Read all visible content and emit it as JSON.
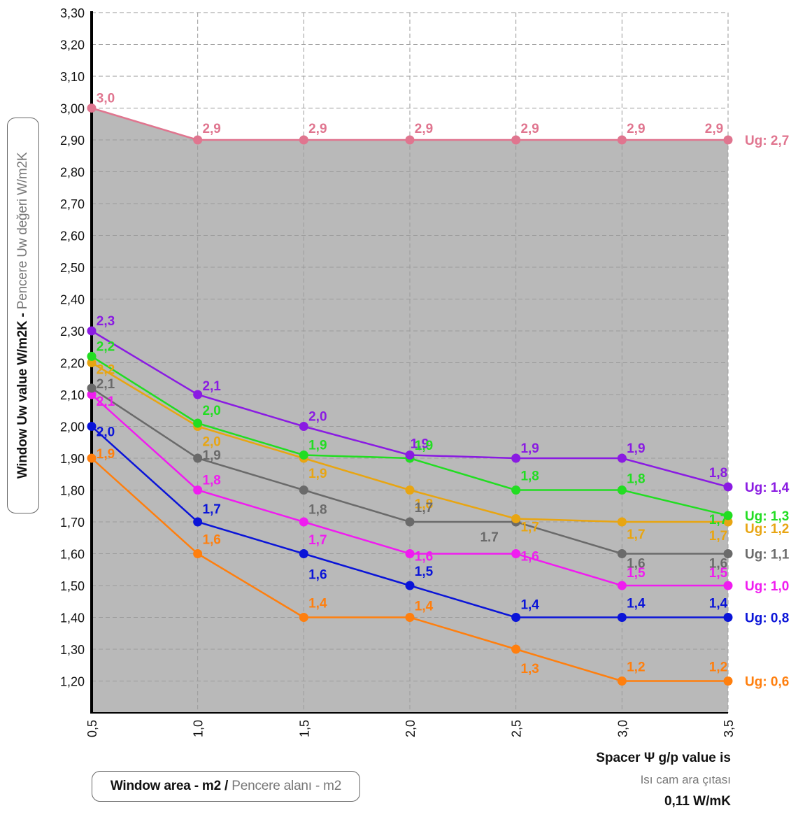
{
  "chart_data": {
    "type": "line",
    "ylabel_bold": "Window Uw value W/m2K - ",
    "ylabel_light": "Pencere Uw değeri W/m2K",
    "xlabel_bold": "Window area - m2 / ",
    "xlabel_light": "Pencere alanı - m2",
    "spacer_note": {
      "line1": "Spacer Ψ g/p value is",
      "line2": "Isı cam ara çıtası",
      "line3": "0,11 W/mK"
    },
    "x": [
      0.5,
      1.0,
      1.5,
      2.0,
      2.5,
      3.0,
      3.5
    ],
    "x_tick_labels": [
      "0,5",
      "1,0",
      "1,5",
      "2,0",
      "2,5",
      "3,0",
      "3,5"
    ],
    "ylim": [
      1.1,
      3.3
    ],
    "y_ticks": [
      1.2,
      1.3,
      1.4,
      1.5,
      1.6,
      1.7,
      1.8,
      1.9,
      2.0,
      2.1,
      2.2,
      2.3,
      2.4,
      2.5,
      2.6,
      2.7,
      2.8,
      2.9,
      3.0,
      3.1,
      3.2,
      3.3
    ],
    "y_tick_labels": [
      "1,20",
      "1,30",
      "1,40",
      "1,50",
      "1,60",
      "1,70",
      "1,80",
      "1,90",
      "2,00",
      "2,10",
      "2,20",
      "2,30",
      "2,40",
      "2,50",
      "2,60",
      "2,70",
      "2,80",
      "2,90",
      "3,00",
      "3,10",
      "3,20",
      "3,30"
    ],
    "grid": true,
    "fill_color": "#b9b9b9",
    "series": [
      {
        "name": "Ug: 2,7",
        "color": "#e0758f",
        "values": [
          3.0,
          2.9,
          2.9,
          2.9,
          2.9,
          2.9,
          2.9
        ],
        "labels": [
          "3,0",
          "2,9",
          "2,9",
          "2,9",
          "2,9",
          "2,9",
          "2,9"
        ]
      },
      {
        "name": "Ug: 1,4",
        "color": "#8a1be2",
        "values": [
          2.3,
          2.1,
          2.0,
          1.91,
          1.9,
          1.9,
          1.81
        ],
        "labels": [
          "2,3",
          "2,1",
          "2,0",
          "1,9",
          "1,9",
          "1,9",
          "1,8"
        ]
      },
      {
        "name": "Ug: 1,3",
        "color": "#22dd22",
        "values": [
          2.22,
          2.01,
          1.91,
          1.9,
          1.8,
          1.8,
          1.72
        ],
        "labels": [
          "2,2",
          "2,0",
          "1,9",
          "1,9",
          "1,8",
          "1,8",
          "1,7"
        ]
      },
      {
        "name": "Ug: 1,2",
        "color": "#e8a512",
        "values": [
          2.2,
          2.0,
          1.9,
          1.8,
          1.71,
          1.7,
          1.7
        ],
        "labels": [
          "2,2",
          "2,0",
          "1,9",
          "1,8",
          "1,7",
          "1,7",
          "1,7"
        ]
      },
      {
        "name": "Ug: 1,1",
        "color": "#6a6a6a",
        "values": [
          2.12,
          1.9,
          1.8,
          1.7,
          1.7,
          1.6,
          1.6
        ],
        "labels": [
          "2,1",
          "1,9",
          "1,8",
          "1,7",
          "1.7",
          "1,6",
          "1,6"
        ]
      },
      {
        "name": "Ug: 1,0",
        "color": "#f01cf0",
        "values": [
          2.1,
          1.8,
          1.7,
          1.6,
          1.6,
          1.5,
          1.5
        ],
        "labels": [
          "2,1",
          "1,8",
          "1,7",
          "1,6",
          "1,6",
          "1,5",
          "1,5"
        ]
      },
      {
        "name": "Ug: 0,8",
        "color": "#0a14d8",
        "values": [
          2.0,
          1.7,
          1.6,
          1.5,
          1.4,
          1.4,
          1.4
        ],
        "labels": [
          "2,0",
          "1,7",
          "1,6",
          "1,5",
          "1,4",
          "1,4",
          "1,4"
        ]
      },
      {
        "name": "Ug: 0,6",
        "color": "#ff7f0e",
        "values": [
          1.9,
          1.6,
          1.4,
          1.4,
          1.3,
          1.2,
          1.2
        ],
        "labels": [
          "1,9",
          "1,6",
          "1,4",
          "1,4",
          "1,3",
          "1,2",
          "1,2"
        ]
      }
    ]
  }
}
